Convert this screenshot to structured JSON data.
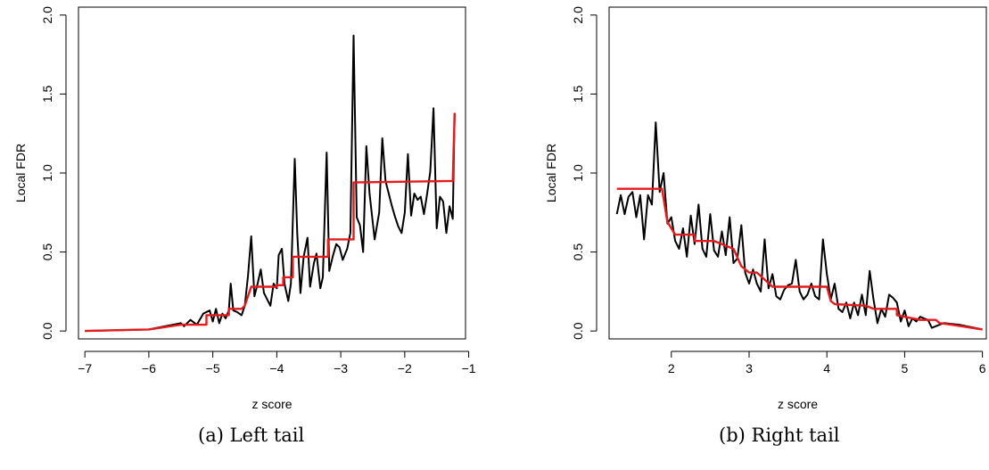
{
  "chart_data": [
    {
      "type": "line",
      "caption": "(a) Left tail",
      "xlabel": "z score",
      "ylabel": "Local FDR",
      "xlim": [
        -7.1,
        -1.05
      ],
      "ylim": [
        -0.05,
        2.05
      ],
      "xticks": [
        -7,
        -6,
        -5,
        -4,
        -3,
        -2,
        -1
      ],
      "xtick_labels": [
        "−7",
        "−6",
        "−5",
        "−4",
        "−3",
        "−2",
        "−1"
      ],
      "yticks": [
        0,
        0.5,
        1,
        1.5,
        2
      ],
      "ytick_labels": [
        "0.0",
        "0.5",
        "1.0",
        "1.5",
        "2.0"
      ],
      "grid": false,
      "series": [
        {
          "color": "#000000",
          "points": [
            [
              -7.0,
              0.0
            ],
            [
              -6.0,
              0.01
            ],
            [
              -5.5,
              0.05
            ],
            [
              -5.45,
              0.03
            ],
            [
              -5.35,
              0.07
            ],
            [
              -5.25,
              0.04
            ],
            [
              -5.15,
              0.11
            ],
            [
              -5.05,
              0.13
            ],
            [
              -5.0,
              0.06
            ],
            [
              -4.95,
              0.14
            ],
            [
              -4.9,
              0.05
            ],
            [
              -4.85,
              0.11
            ],
            [
              -4.8,
              0.08
            ],
            [
              -4.75,
              0.13
            ],
            [
              -4.72,
              0.3
            ],
            [
              -4.68,
              0.13
            ],
            [
              -4.62,
              0.12
            ],
            [
              -4.55,
              0.1
            ],
            [
              -4.5,
              0.16
            ],
            [
              -4.45,
              0.35
            ],
            [
              -4.4,
              0.6
            ],
            [
              -4.35,
              0.22
            ],
            [
              -4.3,
              0.3
            ],
            [
              -4.25,
              0.39
            ],
            [
              -4.2,
              0.24
            ],
            [
              -4.15,
              0.2
            ],
            [
              -4.1,
              0.16
            ],
            [
              -4.05,
              0.3
            ],
            [
              -4.0,
              0.27
            ],
            [
              -3.97,
              0.48
            ],
            [
              -3.92,
              0.52
            ],
            [
              -3.88,
              0.3
            ],
            [
              -3.82,
              0.19
            ],
            [
              -3.78,
              0.3
            ],
            [
              -3.72,
              1.09
            ],
            [
              -3.68,
              0.62
            ],
            [
              -3.63,
              0.24
            ],
            [
              -3.58,
              0.47
            ],
            [
              -3.52,
              0.59
            ],
            [
              -3.48,
              0.28
            ],
            [
              -3.42,
              0.43
            ],
            [
              -3.38,
              0.49
            ],
            [
              -3.32,
              0.27
            ],
            [
              -3.28,
              0.34
            ],
            [
              -3.22,
              1.13
            ],
            [
              -3.18,
              0.38
            ],
            [
              -3.12,
              0.48
            ],
            [
              -3.07,
              0.55
            ],
            [
              -3.02,
              0.53
            ],
            [
              -2.97,
              0.45
            ],
            [
              -2.9,
              0.52
            ],
            [
              -2.85,
              0.62
            ],
            [
              -2.8,
              1.87
            ],
            [
              -2.75,
              0.72
            ],
            [
              -2.7,
              0.67
            ],
            [
              -2.65,
              0.5
            ],
            [
              -2.6,
              1.17
            ],
            [
              -2.55,
              0.87
            ],
            [
              -2.47,
              0.58
            ],
            [
              -2.4,
              0.75
            ],
            [
              -2.35,
              1.22
            ],
            [
              -2.3,
              0.95
            ],
            [
              -2.25,
              0.87
            ],
            [
              -2.2,
              0.79
            ],
            [
              -2.15,
              0.72
            ],
            [
              -2.1,
              0.66
            ],
            [
              -2.05,
              0.62
            ],
            [
              -2.0,
              0.75
            ],
            [
              -1.95,
              1.12
            ],
            [
              -1.9,
              0.73
            ],
            [
              -1.85,
              0.87
            ],
            [
              -1.8,
              0.83
            ],
            [
              -1.75,
              0.85
            ],
            [
              -1.7,
              0.74
            ],
            [
              -1.65,
              0.87
            ],
            [
              -1.6,
              1.01
            ],
            [
              -1.55,
              1.41
            ],
            [
              -1.5,
              0.65
            ],
            [
              -1.45,
              0.85
            ],
            [
              -1.4,
              0.82
            ],
            [
              -1.35,
              0.62
            ],
            [
              -1.3,
              0.79
            ],
            [
              -1.25,
              0.71
            ],
            [
              -1.22,
              1.38
            ]
          ]
        },
        {
          "color": "#e41a1c",
          "points": [
            [
              -7.0,
              0.0
            ],
            [
              -6.0,
              0.01
            ],
            [
              -5.5,
              0.04
            ],
            [
              -5.1,
              0.04
            ],
            [
              -5.1,
              0.1
            ],
            [
              -4.75,
              0.1
            ],
            [
              -4.75,
              0.14
            ],
            [
              -4.55,
              0.14
            ],
            [
              -4.5,
              0.16
            ],
            [
              -4.4,
              0.28
            ],
            [
              -4.0,
              0.28
            ],
            [
              -4.0,
              0.29
            ],
            [
              -3.9,
              0.29
            ],
            [
              -3.9,
              0.34
            ],
            [
              -3.75,
              0.34
            ],
            [
              -3.75,
              0.47
            ],
            [
              -3.2,
              0.47
            ],
            [
              -3.2,
              0.58
            ],
            [
              -2.8,
              0.58
            ],
            [
              -2.8,
              0.94
            ],
            [
              -1.25,
              0.95
            ],
            [
              -1.22,
              1.38
            ]
          ]
        }
      ]
    },
    {
      "type": "line",
      "caption": "(b) Right tail",
      "xlabel": "z score",
      "ylabel": "Local FDR",
      "xlim": [
        1.2,
        6.05
      ],
      "ylim": [
        -0.05,
        2.05
      ],
      "xticks": [
        2,
        3,
        4,
        5,
        6
      ],
      "xtick_labels": [
        "2",
        "3",
        "4",
        "5",
        "6"
      ],
      "yticks": [
        0,
        0.5,
        1,
        1.5,
        2
      ],
      "ytick_labels": [
        "0.0",
        "0.5",
        "1.0",
        "1.5",
        "2.0"
      ],
      "grid": false,
      "series": [
        {
          "color": "#000000",
          "points": [
            [
              1.3,
              0.74
            ],
            [
              1.35,
              0.86
            ],
            [
              1.4,
              0.74
            ],
            [
              1.45,
              0.85
            ],
            [
              1.5,
              0.88
            ],
            [
              1.55,
              0.72
            ],
            [
              1.6,
              0.86
            ],
            [
              1.65,
              0.58
            ],
            [
              1.7,
              0.86
            ],
            [
              1.75,
              0.8
            ],
            [
              1.8,
              1.32
            ],
            [
              1.85,
              0.88
            ],
            [
              1.9,
              1.0
            ],
            [
              1.95,
              0.68
            ],
            [
              2.0,
              0.72
            ],
            [
              2.05,
              0.57
            ],
            [
              2.1,
              0.52
            ],
            [
              2.15,
              0.65
            ],
            [
              2.2,
              0.47
            ],
            [
              2.25,
              0.73
            ],
            [
              2.3,
              0.55
            ],
            [
              2.35,
              0.8
            ],
            [
              2.4,
              0.52
            ],
            [
              2.45,
              0.47
            ],
            [
              2.5,
              0.74
            ],
            [
              2.55,
              0.51
            ],
            [
              2.6,
              0.47
            ],
            [
              2.65,
              0.63
            ],
            [
              2.7,
              0.48
            ],
            [
              2.75,
              0.72
            ],
            [
              2.8,
              0.43
            ],
            [
              2.85,
              0.46
            ],
            [
              2.9,
              0.67
            ],
            [
              2.95,
              0.37
            ],
            [
              3.0,
              0.3
            ],
            [
              3.05,
              0.39
            ],
            [
              3.1,
              0.3
            ],
            [
              3.15,
              0.25
            ],
            [
              3.2,
              0.58
            ],
            [
              3.25,
              0.27
            ],
            [
              3.3,
              0.36
            ],
            [
              3.35,
              0.22
            ],
            [
              3.4,
              0.2
            ],
            [
              3.45,
              0.26
            ],
            [
              3.5,
              0.29
            ],
            [
              3.55,
              0.3
            ],
            [
              3.6,
              0.45
            ],
            [
              3.65,
              0.25
            ],
            [
              3.7,
              0.2
            ],
            [
              3.75,
              0.23
            ],
            [
              3.8,
              0.3
            ],
            [
              3.85,
              0.22
            ],
            [
              3.9,
              0.2
            ],
            [
              3.95,
              0.58
            ],
            [
              4.0,
              0.36
            ],
            [
              4.05,
              0.2
            ],
            [
              4.1,
              0.3
            ],
            [
              4.15,
              0.14
            ],
            [
              4.2,
              0.12
            ],
            [
              4.25,
              0.18
            ],
            [
              4.3,
              0.08
            ],
            [
              4.35,
              0.18
            ],
            [
              4.4,
              0.1
            ],
            [
              4.45,
              0.23
            ],
            [
              4.5,
              0.1
            ],
            [
              4.55,
              0.38
            ],
            [
              4.6,
              0.2
            ],
            [
              4.65,
              0.05
            ],
            [
              4.7,
              0.14
            ],
            [
              4.75,
              0.09
            ],
            [
              4.8,
              0.23
            ],
            [
              4.85,
              0.21
            ],
            [
              4.9,
              0.18
            ],
            [
              4.95,
              0.06
            ],
            [
              5.0,
              0.13
            ],
            [
              5.05,
              0.03
            ],
            [
              5.1,
              0.08
            ],
            [
              5.15,
              0.06
            ],
            [
              5.2,
              0.09
            ],
            [
              5.25,
              0.08
            ],
            [
              5.3,
              0.07
            ],
            [
              5.35,
              0.02
            ],
            [
              5.4,
              0.03
            ],
            [
              5.5,
              0.05
            ],
            [
              5.7,
              0.04
            ],
            [
              5.9,
              0.02
            ],
            [
              6.0,
              0.01
            ]
          ]
        },
        {
          "color": "#e41a1c",
          "points": [
            [
              1.3,
              0.9
            ],
            [
              1.88,
              0.9
            ],
            [
              1.95,
              0.69
            ],
            [
              2.05,
              0.61
            ],
            [
              2.3,
              0.61
            ],
            [
              2.3,
              0.57
            ],
            [
              2.55,
              0.57
            ],
            [
              2.8,
              0.52
            ],
            [
              2.9,
              0.41
            ],
            [
              3.0,
              0.37
            ],
            [
              3.1,
              0.37
            ],
            [
              3.3,
              0.28
            ],
            [
              4.0,
              0.28
            ],
            [
              4.05,
              0.19
            ],
            [
              4.1,
              0.17
            ],
            [
              4.5,
              0.16
            ],
            [
              4.6,
              0.14
            ],
            [
              4.9,
              0.14
            ],
            [
              4.9,
              0.1
            ],
            [
              5.2,
              0.07
            ],
            [
              5.4,
              0.07
            ],
            [
              5.45,
              0.05
            ],
            [
              5.6,
              0.04
            ],
            [
              6.0,
              0.01
            ]
          ]
        }
      ]
    }
  ]
}
